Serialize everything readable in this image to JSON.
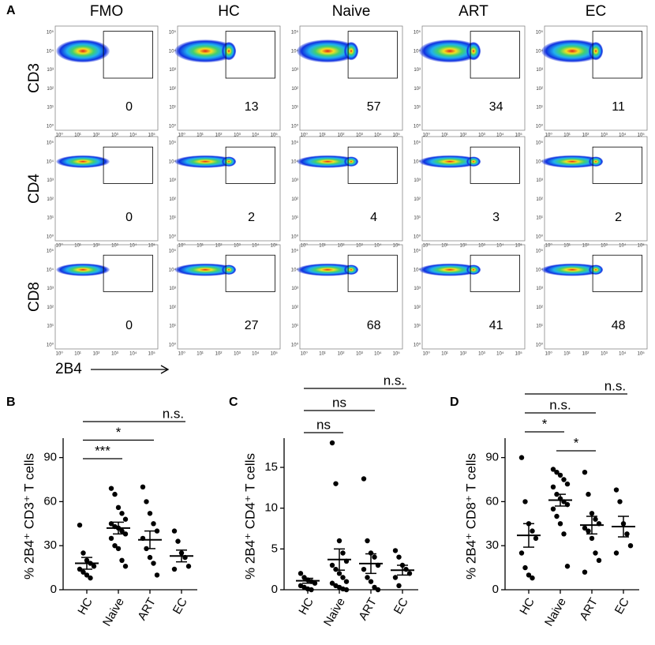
{
  "flow": {
    "label": "A",
    "columns": [
      "FMO",
      "HC",
      "Naive",
      "ART",
      "EC"
    ],
    "rows": [
      "CD3",
      "CD4",
      "CD8"
    ],
    "gate_values": [
      [
        0,
        13,
        57,
        34,
        11
      ],
      [
        0,
        2,
        4,
        3,
        2
      ],
      [
        0,
        27,
        68,
        41,
        48
      ]
    ],
    "x_axis_label": "2B4",
    "axis_ticks": [
      "10⁰",
      "10¹",
      "10²",
      "10³",
      "10⁴",
      "10⁵"
    ]
  },
  "chart_data": [
    {
      "type": "dotplot",
      "label": "B",
      "ylabel": "% 2B4⁺ CD3⁺ T cells",
      "categories": [
        "HC",
        "Naive",
        "ART",
        "EC"
      ],
      "points": [
        [
          44,
          25,
          20,
          18,
          16,
          14,
          12,
          10,
          8
        ],
        [
          69,
          65,
          56,
          52,
          48,
          45,
          43,
          42,
          40,
          38,
          35,
          30,
          28,
          20,
          16
        ],
        [
          70,
          60,
          52,
          45,
          40,
          35,
          28,
          22,
          18,
          10
        ],
        [
          40,
          33,
          25,
          22,
          16,
          14
        ]
      ],
      "means": [
        18,
        42,
        34,
        23
      ],
      "sems": [
        4,
        4,
        6,
        4
      ],
      "ylim": [
        0,
        100
      ],
      "yticks": [
        0,
        30,
        60,
        90
      ],
      "comparisons": [
        {
          "between": [
            "HC",
            "Naive"
          ],
          "label": "***"
        },
        {
          "between": [
            "HC",
            "ART"
          ],
          "label": "*"
        },
        {
          "between": [
            "HC",
            "EC"
          ],
          "label": "n.s."
        }
      ]
    },
    {
      "type": "dotplot",
      "label": "C",
      "ylabel": "% 2B4⁺ CD4⁺ T cells",
      "categories": [
        "HC",
        "Naive",
        "ART",
        "EC"
      ],
      "points": [
        [
          2,
          1.5,
          1.2,
          1,
          0.8,
          0.5,
          0.3,
          0.1,
          0
        ],
        [
          18,
          13,
          6,
          4.5,
          3.5,
          3,
          2.5,
          2,
          1.5,
          1,
          0.8,
          0.5,
          0.3,
          0.1,
          0
        ],
        [
          13.6,
          6,
          4.5,
          4,
          3,
          2.5,
          1.5,
          1,
          0.3,
          0
        ],
        [
          4.8,
          4,
          3,
          2.5,
          2,
          1.5,
          0.5
        ]
      ],
      "means": [
        1.1,
        3.7,
        3.2,
        2.4
      ],
      "sems": [
        0.3,
        1.3,
        1.2,
        0.6
      ],
      "ylim": [
        0,
        18
      ],
      "yticks": [
        0,
        5,
        10,
        15
      ],
      "comparisons": [
        {
          "between": [
            "HC",
            "Naive"
          ],
          "label": "ns"
        },
        {
          "between": [
            "HC",
            "ART"
          ],
          "label": "ns"
        },
        {
          "between": [
            "HC",
            "EC"
          ],
          "label": "n.s."
        }
      ]
    },
    {
      "type": "dotplot",
      "label": "D",
      "ylabel": "% 2B4⁺ CD8⁺ T cells",
      "categories": [
        "HC",
        "Naive",
        "ART",
        "EC"
      ],
      "points": [
        [
          90,
          60,
          45,
          40,
          35,
          25,
          15,
          10,
          8
        ],
        [
          82,
          80,
          78,
          75,
          72,
          70,
          65,
          62,
          60,
          58,
          55,
          50,
          45,
          38,
          16
        ],
        [
          80,
          65,
          52,
          48,
          45,
          42,
          40,
          35,
          25,
          20,
          12
        ],
        [
          68,
          60,
          45,
          38,
          30,
          25
        ]
      ],
      "means": [
        37,
        61,
        44,
        43
      ],
      "sems": [
        8,
        4,
        6,
        7
      ],
      "ylim": [
        0,
        100
      ],
      "yticks": [
        0,
        30,
        60,
        90
      ],
      "comparisons": [
        {
          "between": [
            "Naive",
            "ART"
          ],
          "label": "*"
        },
        {
          "between": [
            "HC",
            "Naive"
          ],
          "label": "*"
        },
        {
          "between": [
            "HC",
            "ART"
          ],
          "label": "n.s."
        },
        {
          "between": [
            "HC",
            "EC"
          ],
          "label": "n.s."
        }
      ]
    }
  ]
}
